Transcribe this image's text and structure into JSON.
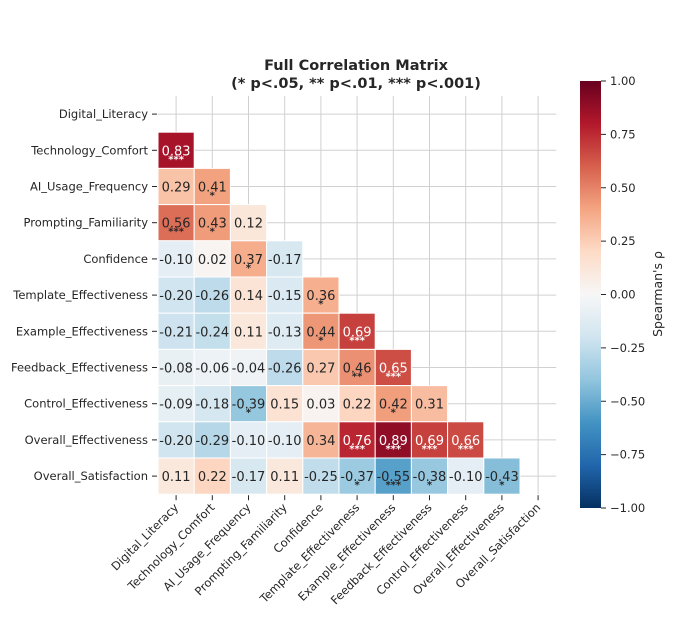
{
  "chart_data": {
    "type": "heatmap",
    "title_lines": [
      "Full Correlation Matrix",
      "(* p<.05, ** p<.01, *** p<.001)"
    ],
    "variables": [
      "Digital_Literacy",
      "Technology_Comfort",
      "AI_Usage_Frequency",
      "Prompting_Familiarity",
      "Confidence",
      "Template_Effectiveness",
      "Example_Effectiveness",
      "Feedback_Effectiveness",
      "Control_Effectiveness",
      "Overall_Effectiveness",
      "Overall_Satisfaction"
    ],
    "lower_triangle_labels": [
      [],
      [
        "0.83"
      ],
      [
        "0.29",
        "0.41"
      ],
      [
        "0.56",
        "0.43",
        "0.12"
      ],
      [
        "-0.10",
        "0.02",
        "0.37",
        "-0.17"
      ],
      [
        "-0.20",
        "-0.26",
        "0.14",
        "-0.15",
        "0.36"
      ],
      [
        "-0.21",
        "-0.24",
        "0.11",
        "-0.13",
        "0.44",
        "0.69"
      ],
      [
        "-0.08",
        "-0.06",
        "-0.04",
        "-0.26",
        "0.27",
        "0.46",
        "0.65"
      ],
      [
        "-0.09",
        "-0.18",
        "-0.39",
        "0.15",
        "0.03",
        "0.22",
        "0.42",
        "0.31"
      ],
      [
        "-0.20",
        "-0.29",
        "-0.10",
        "-0.10",
        "0.34",
        "0.76",
        "0.89",
        "0.69",
        "0.66"
      ],
      [
        "0.11",
        "0.22",
        "-0.17",
        "0.11",
        "-0.25",
        "-0.37",
        "-0.55",
        "-0.38",
        "-0.10",
        "-0.43"
      ]
    ],
    "significance": [
      [],
      [
        "***"
      ],
      [
        "",
        "*"
      ],
      [
        "***",
        "*",
        ""
      ],
      [
        "",
        "",
        "*",
        ""
      ],
      [
        "",
        "",
        "",
        "",
        "*"
      ],
      [
        "",
        "",
        "",
        "",
        "*",
        "***"
      ],
      [
        "",
        "",
        "",
        "",
        "",
        "**",
        "***"
      ],
      [
        "",
        "",
        "*",
        "",
        "",
        "",
        "*",
        ""
      ],
      [
        "",
        "",
        "",
        "",
        "",
        "***",
        "***",
        "***",
        "***"
      ],
      [
        "",
        "",
        "",
        "",
        "",
        "*",
        "***",
        "*",
        "",
        "*"
      ]
    ],
    "colorbar": {
      "label": "Spearman's ρ",
      "range": [
        -1.0,
        1.0
      ],
      "ticks": [
        "1.00",
        "0.75",
        "0.50",
        "0.25",
        "0.00",
        "−0.25",
        "−0.50",
        "−0.75",
        "−1.00"
      ],
      "colormap": "RdBu_r",
      "stops": [
        "#053061",
        "#2166ac",
        "#4393c3",
        "#92c5de",
        "#d1e5f0",
        "#f7f7f7",
        "#fddbc7",
        "#f4a582",
        "#d6604d",
        "#b2182b",
        "#67001f"
      ]
    },
    "mask": "upper-triangle-and-diagonal",
    "grid": true
  }
}
